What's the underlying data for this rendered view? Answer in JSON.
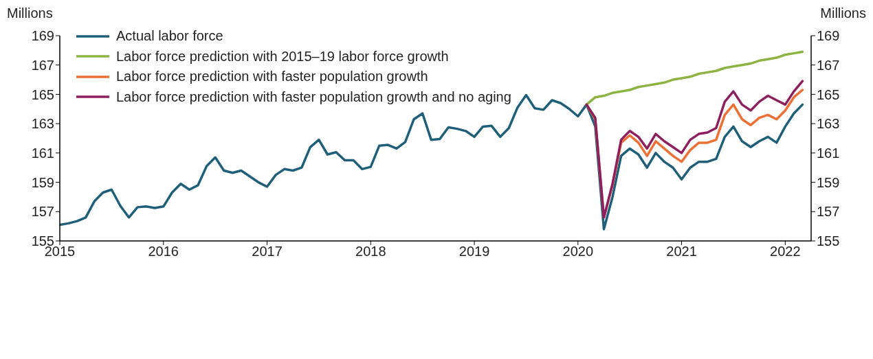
{
  "chart_data": {
    "type": "line",
    "ylabel": "Millions",
    "y2label": "Millions",
    "x": [
      "2015-01",
      "2015-02",
      "2015-03",
      "2015-04",
      "2015-05",
      "2015-06",
      "2015-07",
      "2015-08",
      "2015-09",
      "2015-10",
      "2015-11",
      "2015-12",
      "2016-01",
      "2016-02",
      "2016-03",
      "2016-04",
      "2016-05",
      "2016-06",
      "2016-07",
      "2016-08",
      "2016-09",
      "2016-10",
      "2016-11",
      "2016-12",
      "2017-01",
      "2017-02",
      "2017-03",
      "2017-04",
      "2017-05",
      "2017-06",
      "2017-07",
      "2017-08",
      "2017-09",
      "2017-10",
      "2017-11",
      "2017-12",
      "2018-01",
      "2018-02",
      "2018-03",
      "2018-04",
      "2018-05",
      "2018-06",
      "2018-07",
      "2018-08",
      "2018-09",
      "2018-10",
      "2018-11",
      "2018-12",
      "2019-01",
      "2019-02",
      "2019-03",
      "2019-04",
      "2019-05",
      "2019-06",
      "2019-07",
      "2019-08",
      "2019-09",
      "2019-10",
      "2019-11",
      "2019-12",
      "2020-01",
      "2020-02",
      "2020-03",
      "2020-04",
      "2020-05",
      "2020-06",
      "2020-07",
      "2020-08",
      "2020-09",
      "2020-10",
      "2020-11",
      "2020-12",
      "2021-01",
      "2021-02",
      "2021-03",
      "2021-04",
      "2021-05",
      "2021-06",
      "2021-07",
      "2021-08",
      "2021-09",
      "2021-10",
      "2021-11",
      "2021-12",
      "2022-01",
      "2022-02",
      "2022-03"
    ],
    "series": [
      {
        "name": "Actual labor force",
        "color": "#1f5f7a",
        "values": [
          156.1,
          156.2,
          156.35,
          156.6,
          157.7,
          158.3,
          158.5,
          157.4,
          156.6,
          157.3,
          157.35,
          157.25,
          157.35,
          158.3,
          158.9,
          158.5,
          158.8,
          160.1,
          160.7,
          159.8,
          159.65,
          159.8,
          159.4,
          159.0,
          158.7,
          159.5,
          159.9,
          159.8,
          160.0,
          161.4,
          161.9,
          160.9,
          161.05,
          160.5,
          160.5,
          159.9,
          160.05,
          161.5,
          161.55,
          161.3,
          161.75,
          163.3,
          163.7,
          161.9,
          161.95,
          162.75,
          162.65,
          162.5,
          162.1,
          162.8,
          162.85,
          162.1,
          162.7,
          164.1,
          164.95,
          164.05,
          163.95,
          164.6,
          164.4,
          164.0,
          163.5,
          164.3,
          162.8,
          155.8,
          158.0,
          160.8,
          161.3,
          160.9,
          160.0,
          161.0,
          160.4,
          160.0,
          159.2,
          160.0,
          160.4,
          160.4,
          160.6,
          162.1,
          162.8,
          161.8,
          161.4,
          161.8,
          162.1,
          161.7,
          162.8,
          163.7,
          164.3
        ]
      },
      {
        "name": "Labor force prediction with 2015–19 labor force growth",
        "color": "#8db443",
        "values": [
          null,
          null,
          null,
          null,
          null,
          null,
          null,
          null,
          null,
          null,
          null,
          null,
          null,
          null,
          null,
          null,
          null,
          null,
          null,
          null,
          null,
          null,
          null,
          null,
          null,
          null,
          null,
          null,
          null,
          null,
          null,
          null,
          null,
          null,
          null,
          null,
          null,
          null,
          null,
          null,
          null,
          null,
          null,
          null,
          null,
          null,
          null,
          null,
          null,
          null,
          null,
          null,
          null,
          null,
          null,
          null,
          null,
          null,
          null,
          null,
          null,
          164.3,
          164.8,
          164.9,
          165.1,
          165.2,
          165.3,
          165.5,
          165.6,
          165.7,
          165.8,
          166.0,
          166.1,
          166.2,
          166.4,
          166.5,
          166.6,
          166.8,
          166.9,
          167.0,
          167.1,
          167.3,
          167.4,
          167.5,
          167.7,
          167.8,
          167.9
        ]
      },
      {
        "name": "Labor force prediction with faster population growth",
        "color": "#ec7035",
        "values": [
          null,
          null,
          null,
          null,
          null,
          null,
          null,
          null,
          null,
          null,
          null,
          null,
          null,
          null,
          null,
          null,
          null,
          null,
          null,
          null,
          null,
          null,
          null,
          null,
          null,
          null,
          null,
          null,
          null,
          null,
          null,
          null,
          null,
          null,
          null,
          null,
          null,
          null,
          null,
          null,
          null,
          null,
          null,
          null,
          null,
          null,
          null,
          null,
          null,
          null,
          null,
          null,
          null,
          null,
          null,
          null,
          null,
          null,
          null,
          null,
          null,
          164.3,
          163.3,
          156.6,
          158.8,
          161.7,
          162.2,
          161.7,
          160.8,
          161.8,
          161.3,
          160.8,
          160.4,
          161.2,
          161.7,
          161.7,
          161.9,
          163.6,
          164.3,
          163.3,
          162.9,
          163.4,
          163.6,
          163.3,
          163.9,
          164.8,
          165.3
        ]
      },
      {
        "name": "Labor force prediction with faster population growth and no aging",
        "color": "#8e1f5f",
        "values": [
          null,
          null,
          null,
          null,
          null,
          null,
          null,
          null,
          null,
          null,
          null,
          null,
          null,
          null,
          null,
          null,
          null,
          null,
          null,
          null,
          null,
          null,
          null,
          null,
          null,
          null,
          null,
          null,
          null,
          null,
          null,
          null,
          null,
          null,
          null,
          null,
          null,
          null,
          null,
          null,
          null,
          null,
          null,
          null,
          null,
          null,
          null,
          null,
          null,
          null,
          null,
          null,
          null,
          null,
          null,
          null,
          null,
          null,
          null,
          null,
          null,
          164.3,
          163.4,
          156.6,
          158.9,
          161.9,
          162.5,
          162.1,
          161.3,
          162.3,
          161.8,
          161.4,
          161.0,
          161.9,
          162.3,
          162.4,
          162.7,
          164.5,
          165.2,
          164.3,
          163.9,
          164.5,
          164.9,
          164.6,
          164.3,
          165.2,
          165.9
        ]
      }
    ],
    "xlim": [
      "2015-01",
      "2022-04"
    ],
    "xticks": [
      "2015",
      "2016",
      "2017",
      "2018",
      "2019",
      "2020",
      "2021",
      "2022"
    ],
    "ylim": [
      155,
      169
    ],
    "yticks": [
      155,
      157,
      159,
      161,
      163,
      165,
      167,
      169
    ],
    "y2lim": [
      155,
      169
    ],
    "y2ticks": [
      155,
      157,
      159,
      161,
      163,
      165,
      167,
      169
    ],
    "legend": "top left",
    "grid": false,
    "marker": "none",
    "line_style": "solid"
  }
}
